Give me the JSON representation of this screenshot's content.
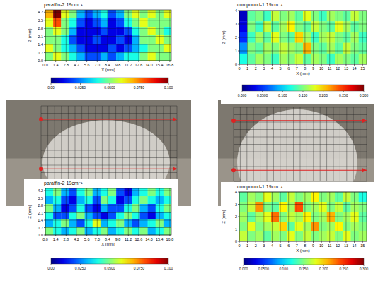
{
  "chart_data": [
    {
      "type": "heatmap",
      "title": "paraffin-2 19cm⁻¹",
      "x_label": "X (mm)",
      "y_label": "Z (mm)",
      "xlim": [
        0,
        17
      ],
      "ylim": [
        0,
        4.4
      ],
      "xticks": [
        {
          "value": 0,
          "label": "0.0"
        },
        1.4,
        2.8,
        4.2,
        5.6,
        {
          "value": 7,
          "label": "7.0"
        },
        8.4,
        9.8,
        11.2,
        12.6,
        {
          "value": 14,
          "label": "14.0"
        },
        15.4,
        16.8
      ],
      "yticks": [
        {
          "value": 0,
          "label": "0.0"
        },
        0.7,
        1.4,
        2.1,
        2.8,
        3.5,
        4.2
      ],
      "grid": true,
      "cells": [
        [
          0.07,
          0.1,
          0.06,
          0.05,
          0.03,
          0.02,
          0.03,
          0.04,
          0.02,
          0.03,
          0.05,
          0.06,
          0.05,
          0.06,
          0.05,
          0.06
        ],
        [
          0.06,
          0.08,
          0.05,
          0.04,
          0.02,
          0.01,
          0.02,
          0.03,
          0.01,
          0.02,
          0.04,
          0.05,
          0.06,
          0.05,
          0.05,
          0.05
        ],
        [
          0.05,
          0.06,
          0.05,
          0.03,
          0.01,
          0.01,
          0.01,
          0.02,
          0.01,
          0.01,
          0.02,
          0.04,
          0.05,
          0.06,
          0.05,
          0.04
        ],
        [
          0.05,
          0.05,
          0.04,
          0.02,
          0.01,
          0.01,
          0.02,
          0.01,
          0.01,
          0.02,
          0.01,
          0.03,
          0.05,
          0.05,
          0.06,
          0.05
        ],
        [
          0.06,
          0.05,
          0.04,
          0.03,
          0.02,
          0.01,
          0.01,
          0.01,
          0.02,
          0.01,
          0.02,
          0.03,
          0.04,
          0.05,
          0.05,
          0.06
        ],
        [
          0.05,
          0.06,
          0.05,
          0.04,
          0.03,
          0.02,
          0.02,
          0.03,
          0.02,
          0.03,
          0.04,
          0.04,
          0.05,
          0.06,
          0.05,
          0.05
        ]
      ],
      "colorbar_range": [
        0,
        0.1
      ],
      "colorbar_ticks": [
        {
          "value": 0,
          "label": "0.00"
        },
        {
          "value": 0.025,
          "label": "0.0250"
        },
        {
          "value": 0.05,
          "label": "0.0500"
        },
        {
          "value": 0.075,
          "label": "0.0750"
        },
        {
          "value": 0.1,
          "label": "0.100"
        }
      ]
    },
    {
      "type": "heatmap",
      "title": "compound-1 19cm⁻¹",
      "x_label": "X (mm)",
      "y_label": "Z (mm)",
      "xlim": [
        0,
        15.5
      ],
      "ylim": [
        0,
        4
      ],
      "xticks": [
        0,
        1,
        2,
        3,
        4,
        5,
        6,
        7,
        8,
        9,
        10,
        11,
        12,
        13,
        14,
        15
      ],
      "yticks": [
        0,
        1,
        2,
        3,
        4
      ],
      "grid": true,
      "cells": [
        [
          0.02,
          0.14,
          0.15,
          0.13,
          0.17,
          0.15,
          0.16,
          0.14,
          0.18,
          0.15,
          0.13,
          0.16,
          0.15,
          0.14,
          0.17,
          0.15
        ],
        [
          0.03,
          0.15,
          0.13,
          0.17,
          0.14,
          0.16,
          0.19,
          0.15,
          0.14,
          0.17,
          0.15,
          0.14,
          0.18,
          0.16,
          0.14,
          0.15
        ],
        [
          0.05,
          0.13,
          0.16,
          0.14,
          0.18,
          0.15,
          0.14,
          0.2,
          0.16,
          0.13,
          0.16,
          0.17,
          0.15,
          0.14,
          0.16,
          0.13
        ],
        [
          0.08,
          0.15,
          0.14,
          0.16,
          0.15,
          0.17,
          0.16,
          0.15,
          0.21,
          0.15,
          0.14,
          0.16,
          0.14,
          0.17,
          0.15,
          0.14
        ],
        [
          0.12,
          0.14,
          0.16,
          0.15,
          0.13,
          0.16,
          0.15,
          0.17,
          0.14,
          0.16,
          0.15,
          0.13,
          0.16,
          0.15,
          0.14,
          0.16
        ]
      ],
      "colorbar_range": [
        0,
        0.3
      ],
      "colorbar_ticks": [
        {
          "value": 0,
          "label": "0.000"
        },
        {
          "value": 0.05,
          "label": "0.0500"
        },
        {
          "value": 0.1,
          "label": "0.100"
        },
        {
          "value": 0.15,
          "label": "0.150"
        },
        {
          "value": 0.2,
          "label": "0.200"
        },
        {
          "value": 0.25,
          "label": "0.250"
        },
        {
          "value": 0.3,
          "label": "0.300"
        }
      ]
    },
    {
      "type": "heatmap",
      "title": "paraffin-2 19cm⁻¹",
      "x_label": "X (mm)",
      "y_label": "Z (mm)",
      "xlim": [
        0,
        17
      ],
      "ylim": [
        0,
        4.4
      ],
      "xticks": [
        {
          "value": 0,
          "label": "0.0"
        },
        1.4,
        2.8,
        4.2,
        5.6,
        {
          "value": 7,
          "label": "7.0"
        },
        8.4,
        9.8,
        11.2,
        12.6,
        {
          "value": 14,
          "label": "14.0"
        },
        15.4,
        16.8
      ],
      "yticks": [
        {
          "value": 0,
          "label": "0.0"
        },
        0.7,
        1.4,
        2.1,
        2.8,
        3.5,
        4.2
      ],
      "grid": true,
      "cells": [
        [
          0.04,
          0.05,
          0.03,
          0.02,
          0.04,
          0.05,
          0.03,
          0.04,
          0.05,
          0.02,
          0.01,
          0.03,
          0.04,
          0.05,
          0.04,
          0.05
        ],
        [
          0.03,
          0.04,
          0.02,
          0.01,
          0.03,
          0.04,
          0.02,
          0.05,
          0.04,
          0.01,
          0.02,
          0.04,
          0.05,
          0.04,
          0.03,
          0.04
        ],
        [
          0.05,
          0.03,
          0.01,
          0.02,
          0.04,
          0.02,
          0.01,
          0.03,
          0.02,
          0.02,
          0.04,
          0.05,
          0.03,
          0.02,
          0.04,
          0.05
        ],
        [
          0.04,
          0.02,
          0.02,
          0.04,
          0.05,
          0.03,
          0.02,
          0.01,
          0.02,
          0.04,
          0.05,
          0.04,
          0.02,
          0.01,
          0.03,
          0.04
        ],
        [
          0.03,
          0.04,
          0.05,
          0.03,
          0.02,
          0.04,
          0.06,
          0.03,
          0.04,
          0.05,
          0.03,
          0.02,
          0.03,
          0.04,
          0.05,
          0.03
        ],
        [
          0.05,
          0.04,
          0.03,
          0.04,
          0.05,
          0.03,
          0.04,
          0.05,
          0.03,
          0.04,
          0.05,
          0.04,
          0.05,
          0.03,
          0.04,
          0.05
        ]
      ],
      "colorbar_range": [
        0,
        0.1
      ],
      "colorbar_ticks": [
        {
          "value": 0,
          "label": "0.00"
        },
        {
          "value": 0.025,
          "label": "0.0250"
        },
        {
          "value": 0.05,
          "label": "0.0500"
        },
        {
          "value": 0.075,
          "label": "0.0750"
        },
        {
          "value": 0.1,
          "label": "0.100"
        }
      ]
    },
    {
      "type": "heatmap",
      "title": "compound-1 19cm⁻¹",
      "x_label": "X (mm)",
      "y_label": "Z (mm)",
      "xlim": [
        0,
        15.5
      ],
      "ylim": [
        0,
        4
      ],
      "xticks": [
        0,
        1,
        2,
        3,
        4,
        5,
        6,
        7,
        8,
        9,
        10,
        11,
        12,
        13,
        14,
        15
      ],
      "yticks": [
        0,
        1,
        2,
        3,
        4
      ],
      "grid": true,
      "cells": [
        [
          0.14,
          0.16,
          0.15,
          0.18,
          0.16,
          0.14,
          0.17,
          0.15,
          0.16,
          0.19,
          0.15,
          0.16,
          0.14,
          0.17,
          0.15,
          0.12
        ],
        [
          0.15,
          0.17,
          0.22,
          0.15,
          0.14,
          0.19,
          0.16,
          0.24,
          0.15,
          0.16,
          0.18,
          0.15,
          0.17,
          0.14,
          0.16,
          0.15
        ],
        [
          0.16,
          0.14,
          0.16,
          0.18,
          0.23,
          0.15,
          0.17,
          0.16,
          0.19,
          0.15,
          0.16,
          0.21,
          0.15,
          0.16,
          0.18,
          0.14
        ],
        [
          0.15,
          0.18,
          0.15,
          0.16,
          0.17,
          0.2,
          0.14,
          0.18,
          0.16,
          0.22,
          0.15,
          0.16,
          0.19,
          0.15,
          0.16,
          0.15
        ],
        [
          0.17,
          0.15,
          0.16,
          0.14,
          0.16,
          0.15,
          0.18,
          0.15,
          0.17,
          0.15,
          0.16,
          0.17,
          0.15,
          0.18,
          0.15,
          0.16
        ]
      ],
      "colorbar_range": [
        0,
        0.3
      ],
      "colorbar_ticks": [
        {
          "value": 0,
          "label": "0.000"
        },
        {
          "value": 0.05,
          "label": "0.0500"
        },
        {
          "value": 0.1,
          "label": "0.100"
        },
        {
          "value": 0.15,
          "label": "0.150"
        },
        {
          "value": 0.2,
          "label": "0.200"
        },
        {
          "value": 0.25,
          "label": "0.250"
        },
        {
          "value": 0.3,
          "label": "0.300"
        }
      ]
    }
  ]
}
